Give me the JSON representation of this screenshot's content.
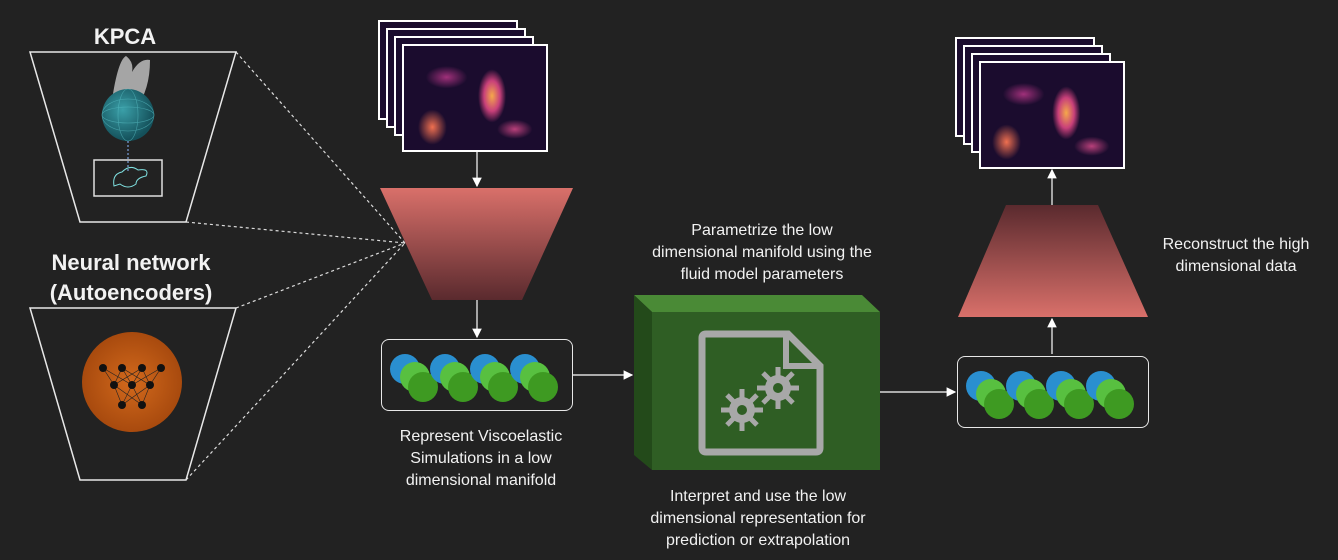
{
  "diagram": {
    "title_fragment": "",
    "kpca_label": "KPCA",
    "neural_label": "Neural network",
    "autoencoder_label": "(Autoencoders)",
    "represent_text": [
      "Represent Viscoelastic",
      "Simulations in a low",
      "dimensional manifold"
    ],
    "parametrize_text": [
      "Parametrize the low",
      "dimensional manifold using the",
      "fluid model parameters"
    ],
    "interpret_text": [
      "Interpret and use the low",
      "dimensional representation for",
      "prediction or extrapolation"
    ],
    "reconstruct_text": [
      "Reconstruct the high",
      "dimensional data"
    ],
    "colors": {
      "background": "#222222",
      "trapezoid": "#d9706a",
      "trapezoid_dark": "#5a2a2e",
      "model_box": "#2f5e24",
      "latent_blue": "#2a8fd0",
      "latent_green": "#44a82c",
      "autoencoder_orange": "#c25a12"
    }
  }
}
